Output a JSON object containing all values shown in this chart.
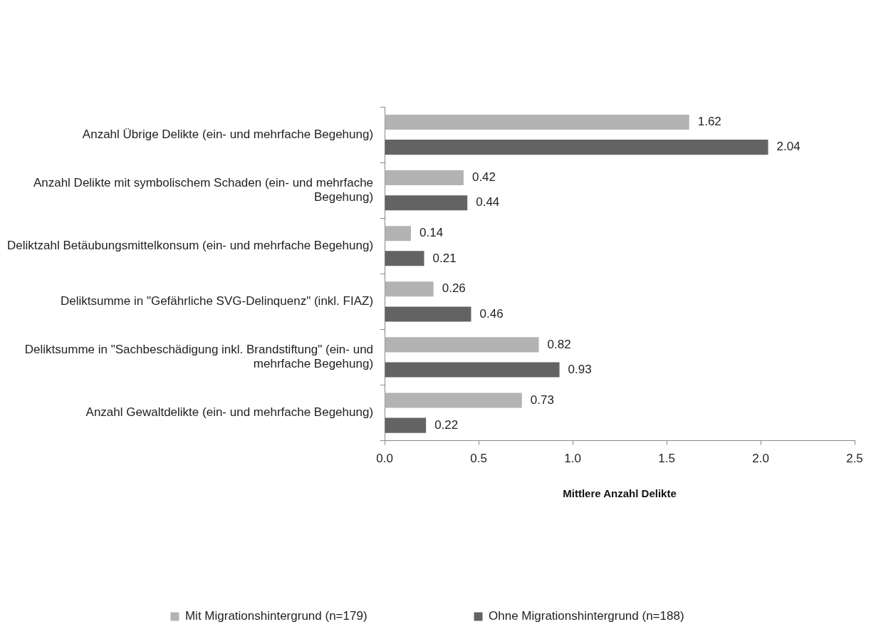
{
  "chart_data": {
    "type": "bar",
    "orientation": "horizontal",
    "xlabel": "Mittlere Anzahl Delikte",
    "categories": [
      "Anzahl Übrige Delikte (ein- und mehrfache Begehung)",
      "Anzahl Delikte mit symbolischem Schaden (ein- und mehrfache Begehung)",
      "Deliktzahl Betäubungsmittelkonsum (ein- und mehrfache Begehung)",
      "Deliktsumme in \"Gefährliche SVG-Delinquenz\" (inkl. FIAZ)",
      "Deliktsumme in \"Sachbeschädigung inkl. Brandstiftung\" (ein- und mehrfache Begehung)",
      "Anzahl Gewaltdelikte (ein- und mehrfache Begehung)"
    ],
    "series": [
      {
        "name": "Mit Migrationshintergrund (n=179)",
        "color": "#b3b3b3",
        "values": [
          1.62,
          0.42,
          0.14,
          0.26,
          0.82,
          0.73
        ]
      },
      {
        "name": "Ohne Migrationshintergrund (n=188)",
        "color": "#636363",
        "values": [
          2.04,
          0.44,
          0.21,
          0.46,
          0.93,
          0.22
        ]
      }
    ],
    "xlim": [
      0,
      2.5
    ],
    "xticks": [
      {
        "value": 0,
        "label": "0.0"
      },
      {
        "value": 0.5,
        "label": "0.5"
      },
      {
        "value": 1,
        "label": "1.0"
      },
      {
        "value": 1.5,
        "label": "1.5"
      },
      {
        "value": 2,
        "label": "2.0"
      },
      {
        "value": 2.5,
        "label": "2.5"
      }
    ],
    "data_labels": true,
    "legend": "bottom"
  }
}
